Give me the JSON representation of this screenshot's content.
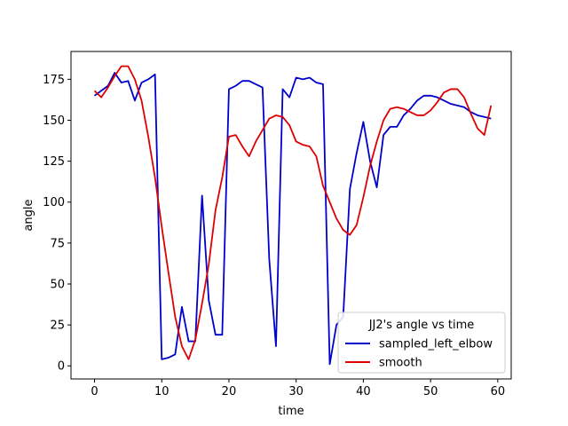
{
  "chart_data": {
    "type": "line",
    "title": "",
    "xlabel": "time",
    "ylabel": "angle",
    "xlim": [
      -3.5,
      62
    ],
    "ylim": [
      -8,
      192
    ],
    "xticks": [
      0,
      10,
      20,
      30,
      40,
      50,
      60
    ],
    "yticks": [
      0,
      25,
      50,
      75,
      100,
      125,
      150,
      175
    ],
    "grid": false,
    "legend": {
      "title": "JJ2's angle vs time",
      "placement": "lower-right"
    },
    "series": [
      {
        "name": "sampled_left_elbow",
        "color": "#0000cc",
        "x": [
          0,
          1,
          2,
          3,
          4,
          5,
          6,
          7,
          8,
          9,
          10,
          11,
          12,
          13,
          14,
          15,
          16,
          17,
          18,
          19,
          20,
          21,
          22,
          23,
          24,
          25,
          26,
          27,
          28,
          29,
          30,
          31,
          32,
          33,
          34,
          35,
          36,
          37,
          38,
          39,
          40,
          41,
          42,
          43,
          44,
          45,
          46,
          47,
          48,
          49,
          50,
          51,
          52,
          53,
          54,
          55,
          56,
          57,
          58,
          59
        ],
        "y": [
          165,
          168,
          171,
          179,
          173,
          174,
          162,
          173,
          175,
          178,
          4,
          5,
          7,
          36,
          15,
          15,
          104,
          40,
          19,
          19,
          169,
          171,
          174,
          174,
          172,
          170,
          65,
          12,
          169,
          164,
          176,
          175,
          176,
          173,
          172,
          1,
          25,
          30,
          108,
          130,
          149,
          125,
          109,
          141,
          146,
          146,
          153,
          157,
          162,
          165,
          165,
          164,
          162,
          160,
          159,
          158,
          155,
          153,
          152,
          151
        ]
      },
      {
        "name": "smooth",
        "color": "#dd0000",
        "x": [
          0,
          1,
          2,
          3,
          4,
          5,
          6,
          7,
          8,
          9,
          10,
          11,
          12,
          13,
          14,
          15,
          16,
          17,
          18,
          19,
          20,
          21,
          22,
          23,
          24,
          25,
          26,
          27,
          28,
          29,
          30,
          31,
          32,
          33,
          34,
          35,
          36,
          37,
          38,
          39,
          40,
          41,
          42,
          43,
          44,
          45,
          46,
          47,
          48,
          49,
          50,
          51,
          52,
          53,
          54,
          55,
          56,
          57,
          58,
          59
        ],
        "y": [
          168,
          164,
          170,
          177,
          183,
          183,
          175,
          162,
          140,
          115,
          85,
          57,
          30,
          12,
          4,
          16,
          38,
          62,
          95,
          115,
          140,
          141,
          134,
          128,
          137,
          144,
          151,
          153,
          152,
          147,
          137,
          135,
          134,
          128,
          110,
          100,
          90,
          83,
          80,
          86,
          103,
          122,
          137,
          150,
          157,
          158,
          157,
          155,
          153,
          153,
          156,
          161,
          167,
          169,
          169,
          164,
          154,
          145,
          141,
          159
        ]
      }
    ]
  }
}
